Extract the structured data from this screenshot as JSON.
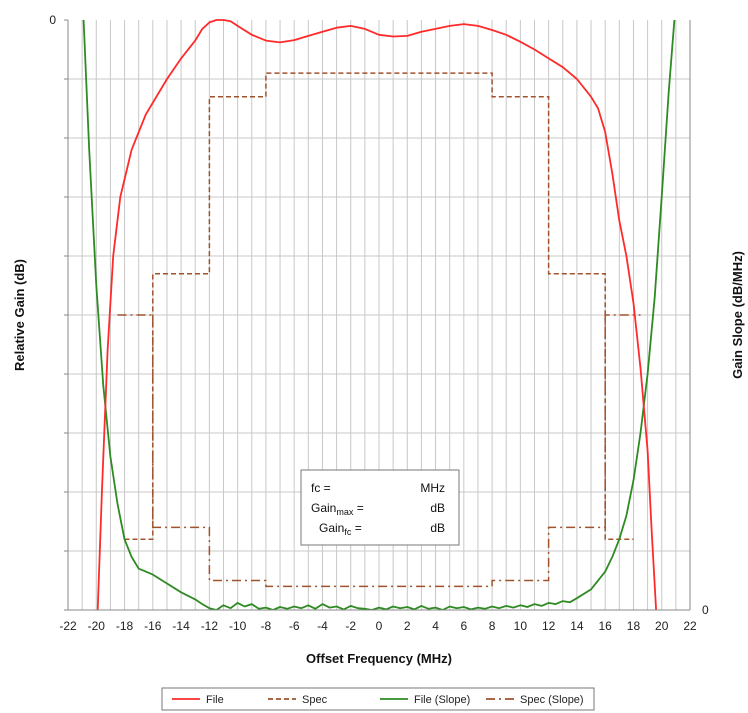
{
  "chart_data": {
    "type": "line",
    "xlabel": "Offset Frequency (MHz)",
    "ylabel_left": "Relative Gain (dB)",
    "ylabel_right": "Gain Slope (dB/MHz)",
    "x_ticks": [
      -22,
      -20,
      -18,
      -16,
      -14,
      -12,
      -10,
      -8,
      -6,
      -4,
      -2,
      0,
      2,
      4,
      6,
      8,
      10,
      12,
      14,
      16,
      18,
      20,
      22
    ],
    "xlim": [
      -22,
      22
    ],
    "x_grid_step": 1,
    "y_left_tick_label": "0",
    "y_right_tick_label": "0",
    "grid": true,
    "legend_position": "bottom-center",
    "note": "Vertical axes carry no numeric scale other than 0; y values below are read as fractions of the plot height, 0 = bottom, 1 = top.",
    "series": [
      {
        "name": "File",
        "color": "#ff2a2a",
        "style": "solid",
        "x": [
          -19.9,
          -19.6,
          -19.2,
          -18.8,
          -18.3,
          -17.5,
          -16.5,
          -15,
          -14,
          -13,
          -12.5,
          -12,
          -11.5,
          -11,
          -10.5,
          -10,
          -9,
          -8,
          -7,
          -6,
          -5,
          -4,
          -3,
          -2,
          -1,
          0,
          1,
          2,
          3,
          4,
          5,
          6,
          7,
          8,
          9,
          10,
          11,
          12,
          13,
          14,
          15,
          15.5,
          16,
          16.5,
          17,
          17.5,
          18,
          18.5,
          19,
          19.3,
          19.6
        ],
        "y": [
          0.0,
          0.2,
          0.44,
          0.6,
          0.7,
          0.78,
          0.84,
          0.9,
          0.935,
          0.965,
          0.985,
          0.996,
          1.0,
          1.0,
          0.998,
          0.99,
          0.975,
          0.965,
          0.962,
          0.966,
          0.973,
          0.98,
          0.987,
          0.99,
          0.985,
          0.975,
          0.972,
          0.973,
          0.98,
          0.985,
          0.99,
          0.993,
          0.99,
          0.983,
          0.975,
          0.963,
          0.95,
          0.935,
          0.92,
          0.9,
          0.87,
          0.85,
          0.81,
          0.74,
          0.66,
          0.6,
          0.52,
          0.41,
          0.27,
          0.13,
          0.0
        ]
      },
      {
        "name": "Spec",
        "color": "#a0522d",
        "style": "dashed",
        "segments": [
          [
            [
              -18.0,
              0.12
            ],
            [
              -16.0,
              0.12
            ],
            [
              -16.0,
              0.57
            ],
            [
              -12.0,
              0.57
            ],
            [
              -12.0,
              0.87
            ],
            [
              -8.0,
              0.87
            ],
            [
              -8.0,
              0.91
            ],
            [
              8.0,
              0.91
            ],
            [
              8.0,
              0.87
            ],
            [
              12.0,
              0.87
            ],
            [
              12.0,
              0.57
            ],
            [
              16.0,
              0.57
            ],
            [
              16.0,
              0.12
            ],
            [
              18.0,
              0.12
            ]
          ]
        ]
      },
      {
        "name": "File (Slope)",
        "color": "#2e8b22",
        "style": "solid",
        "x": [
          -20.9,
          -20.5,
          -20.0,
          -19.5,
          -19.0,
          -18.5,
          -18.0,
          -17.5,
          -17.0,
          -16.5,
          -16.0,
          -15.0,
          -14.0,
          -13.0,
          -12.5,
          -12.0,
          -11.5,
          -11.0,
          -10.5,
          -10.0,
          -9.5,
          -9.0,
          -8.5,
          -8.0,
          -7.5,
          -7.0,
          -6.5,
          -6.0,
          -5.5,
          -5.0,
          -4.5,
          -4.0,
          -3.5,
          -3.0,
          -2.5,
          -2.0,
          -1.5,
          -1.0,
          -0.5,
          0.0,
          0.5,
          1.0,
          1.5,
          2.0,
          2.5,
          3.0,
          3.5,
          4.0,
          4.5,
          5.0,
          5.5,
          6.0,
          6.5,
          7.0,
          7.5,
          8.0,
          8.5,
          9.0,
          9.5,
          10.0,
          10.5,
          11.0,
          11.5,
          12.0,
          12.5,
          13.0,
          13.5,
          14.0,
          15.0,
          16.0,
          16.5,
          17.0,
          17.5,
          18.0,
          18.5,
          19.0,
          19.5,
          20.0,
          20.5,
          20.9
        ],
        "y": [
          1.0,
          0.78,
          0.55,
          0.38,
          0.26,
          0.18,
          0.12,
          0.09,
          0.07,
          0.065,
          0.06,
          0.045,
          0.03,
          0.018,
          0.01,
          0.003,
          0.0,
          0.008,
          0.003,
          0.012,
          0.006,
          0.01,
          0.002,
          0.004,
          0.0,
          0.005,
          0.002,
          0.006,
          0.003,
          0.008,
          0.002,
          0.01,
          0.004,
          0.006,
          0.001,
          0.007,
          0.003,
          0.002,
          0.0,
          0.004,
          0.001,
          0.006,
          0.003,
          0.005,
          0.001,
          0.007,
          0.002,
          0.004,
          0.0,
          0.006,
          0.003,
          0.005,
          0.001,
          0.004,
          0.002,
          0.006,
          0.003,
          0.007,
          0.004,
          0.008,
          0.005,
          0.01,
          0.007,
          0.012,
          0.01,
          0.015,
          0.013,
          0.02,
          0.035,
          0.065,
          0.09,
          0.12,
          0.16,
          0.22,
          0.3,
          0.4,
          0.53,
          0.7,
          0.88,
          1.0
        ]
      },
      {
        "name": "Spec (Slope)",
        "color": "#a0522d",
        "style": "dashdot",
        "segments": [
          [
            [
              -18.5,
              0.5
            ],
            [
              -16.0,
              0.5
            ],
            [
              -16.0,
              0.14
            ],
            [
              -12.0,
              0.14
            ],
            [
              -12.0,
              0.05
            ],
            [
              -8.0,
              0.05
            ],
            [
              -8.0,
              0.04
            ],
            [
              8.0,
              0.04
            ],
            [
              8.0,
              0.05
            ],
            [
              12.0,
              0.05
            ],
            [
              12.0,
              0.14
            ],
            [
              16.0,
              0.14
            ],
            [
              16.0,
              0.5
            ],
            [
              18.5,
              0.5
            ]
          ]
        ]
      }
    ],
    "info_box": {
      "rows": [
        {
          "label": "fc =",
          "unit": "MHz"
        },
        {
          "label": "Gain",
          "sub": "max",
          "suffix": " =",
          "unit": "dB"
        },
        {
          "label": "Gain",
          "sub": "fc",
          "suffix": " =",
          "unit": "dB"
        }
      ]
    }
  }
}
